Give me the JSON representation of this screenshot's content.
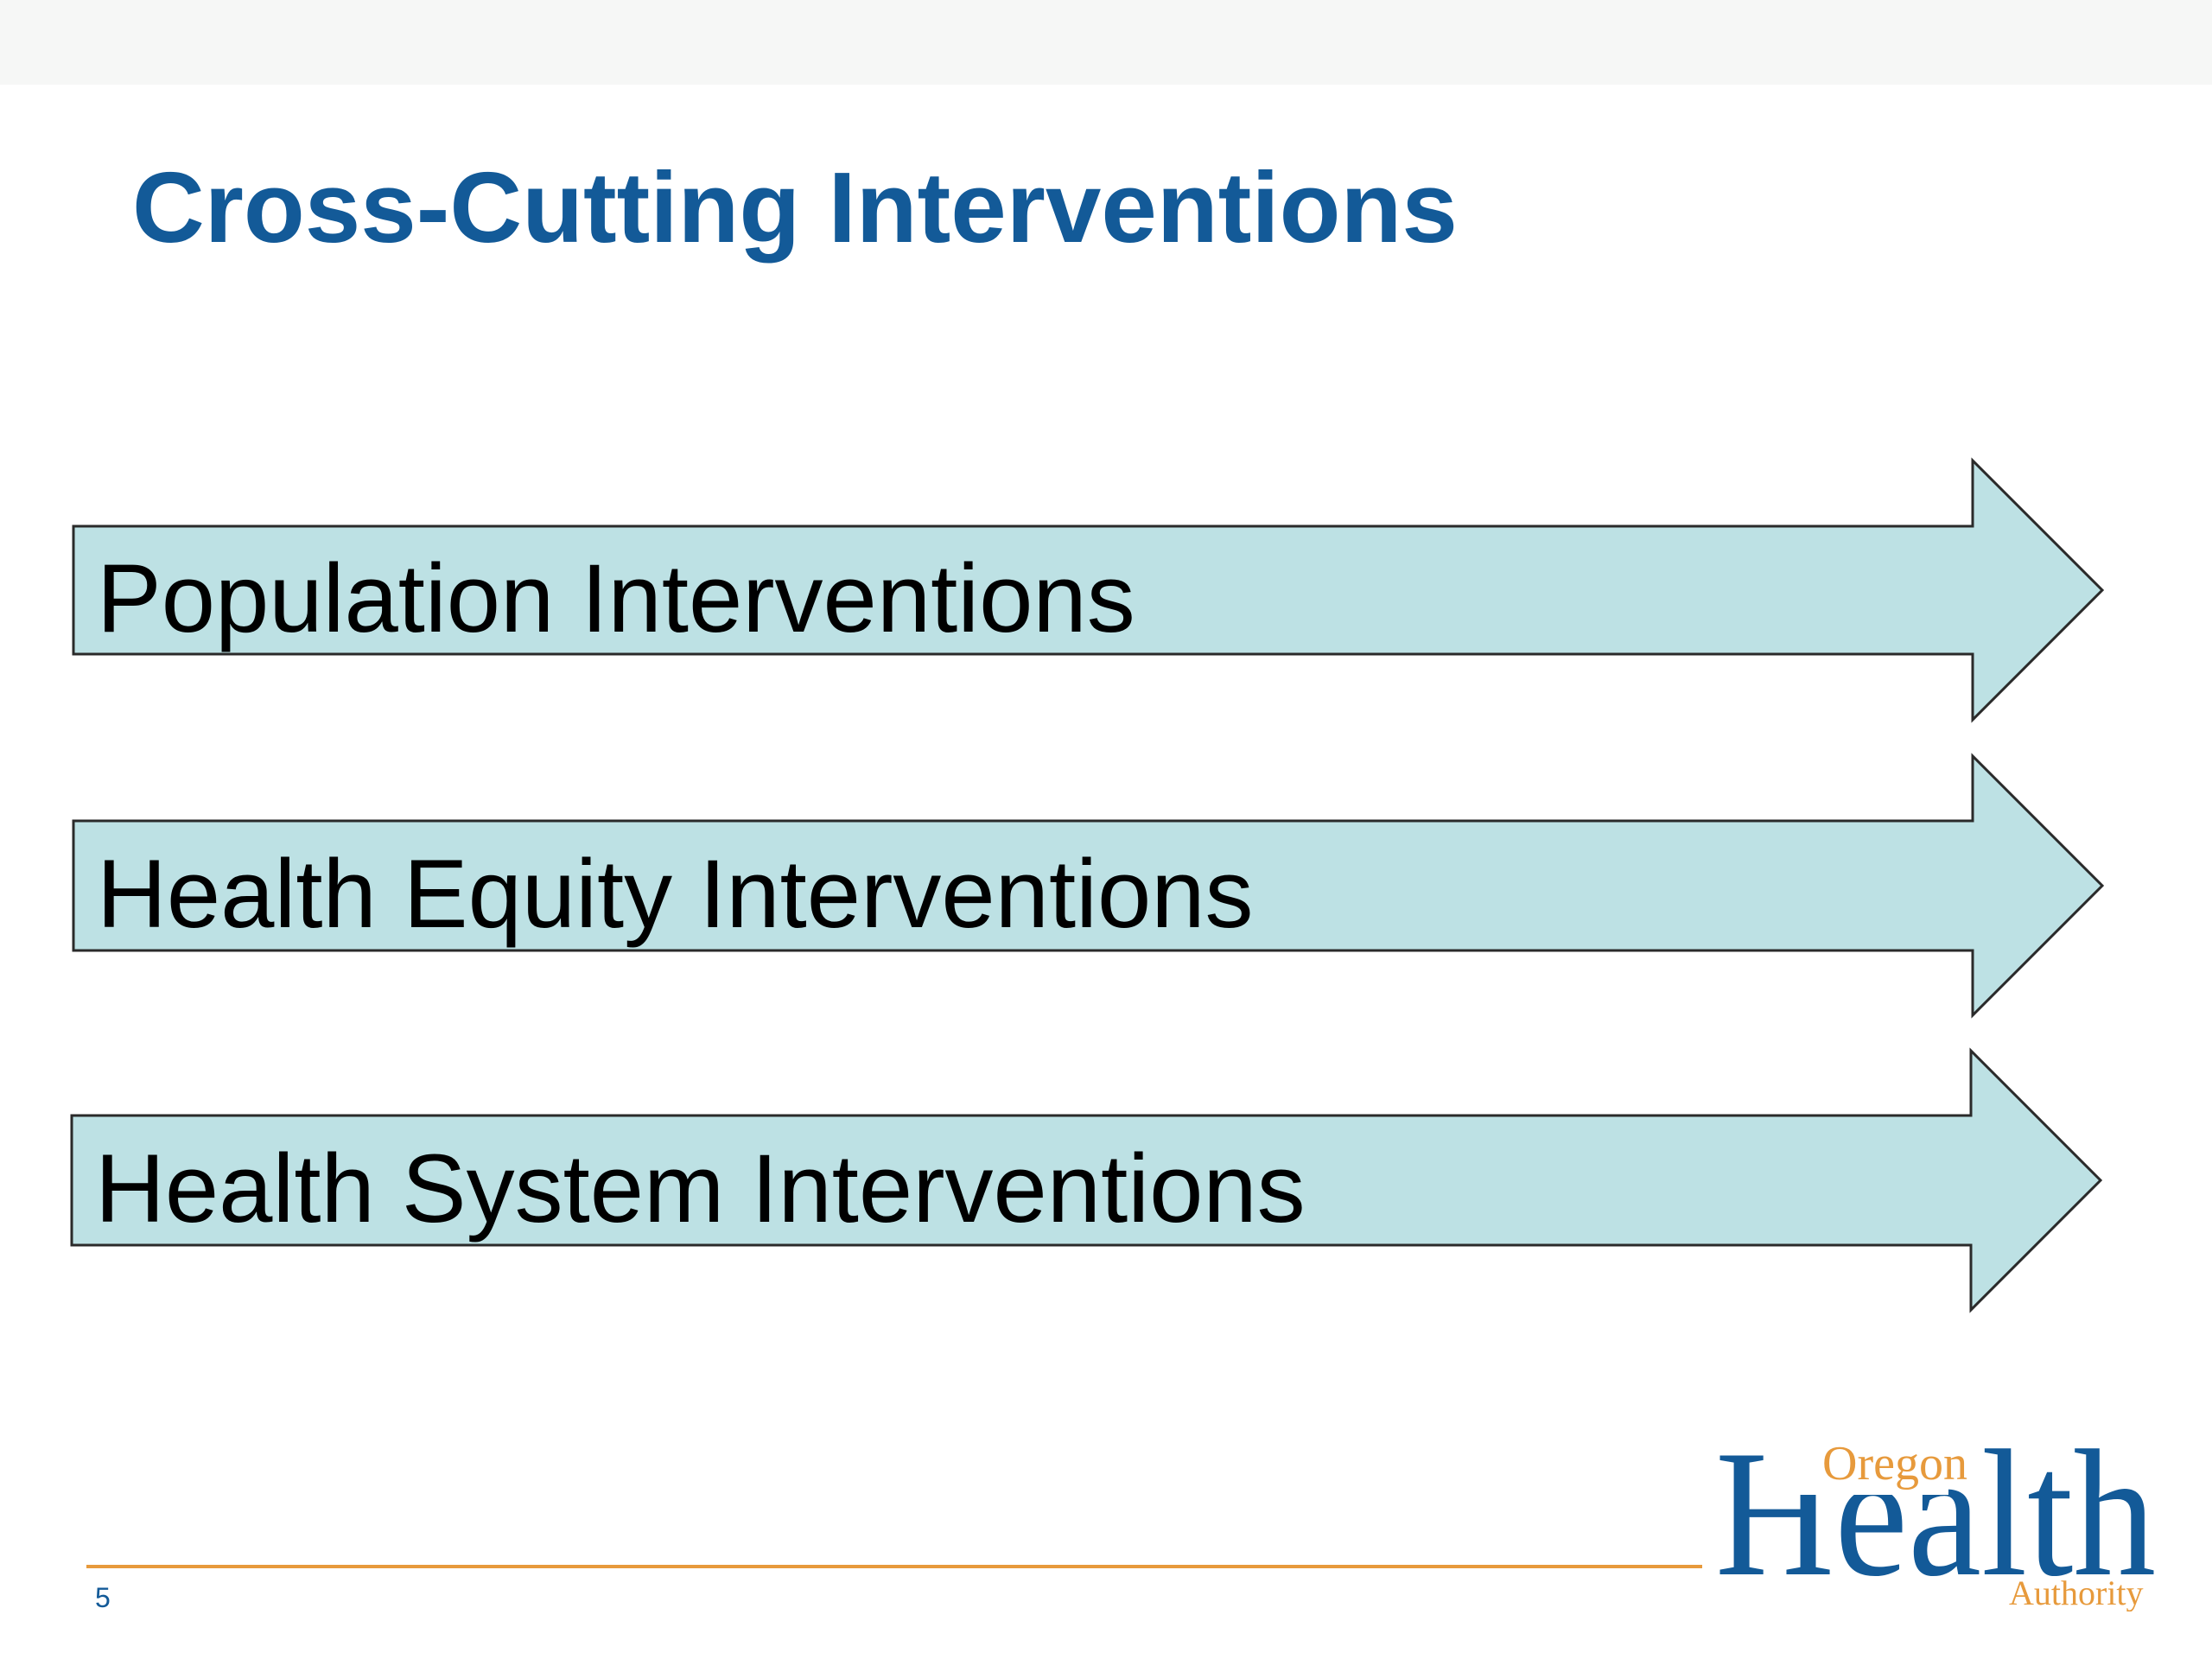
{
  "slide": {
    "title": "Cross-Cutting Interventions",
    "page_number": "5"
  },
  "arrows": [
    {
      "label": "Population Interventions"
    },
    {
      "label": "Health Equity Interventions"
    },
    {
      "label": "Health System Interventions"
    }
  ],
  "logo": {
    "line1": "Oregon",
    "line2": "Health",
    "line3": "Authority"
  },
  "colors": {
    "title": "#135a98",
    "arrow_fill": "#bde1e4",
    "arrow_stroke": "#2a2a2a",
    "footer_rule": "#e79a3c",
    "logo_blue": "#135a98",
    "logo_orange": "#e79a3c"
  }
}
